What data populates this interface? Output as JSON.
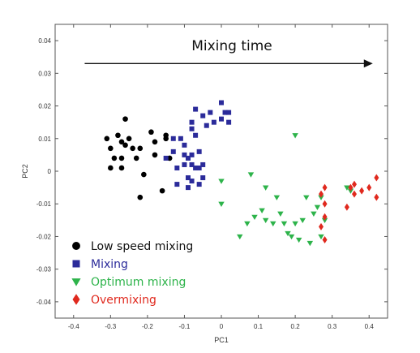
{
  "chart_data": {
    "type": "scatter",
    "xlabel": "PC1",
    "ylabel": "PC2",
    "xlim": [
      -0.45,
      0.45
    ],
    "ylim": [
      -0.045,
      0.045
    ],
    "x_ticks": [
      -0.4,
      -0.3,
      -0.2,
      -0.1,
      0,
      0.1,
      0.2,
      0.3,
      0.4
    ],
    "y_ticks": [
      -0.04,
      -0.03,
      -0.02,
      -0.01,
      0,
      0.01,
      0.02,
      0.03,
      0.04
    ],
    "grid": false,
    "legend_position": "bottom-left",
    "annotation": {
      "text": "Mixing time",
      "arrow_from": [
        -0.37,
        0.033
      ],
      "arrow_to": [
        0.41,
        0.033
      ]
    },
    "series": [
      {
        "name": "Low speed mixing",
        "marker": "circle",
        "color": "#000000",
        "points": [
          [
            -0.31,
            0.01
          ],
          [
            -0.3,
            0.007
          ],
          [
            -0.29,
            0.004
          ],
          [
            -0.3,
            0.001
          ],
          [
            -0.28,
            0.011
          ],
          [
            -0.27,
            0.009
          ],
          [
            -0.26,
            0.016
          ],
          [
            -0.26,
            0.008
          ],
          [
            -0.27,
            0.004
          ],
          [
            -0.27,
            0.001
          ],
          [
            -0.25,
            0.01
          ],
          [
            -0.24,
            0.007
          ],
          [
            -0.23,
            0.004
          ],
          [
            -0.22,
            0.007
          ],
          [
            -0.22,
            -0.008
          ],
          [
            -0.21,
            -0.001
          ],
          [
            -0.19,
            0.012
          ],
          [
            -0.18,
            0.009
          ],
          [
            -0.18,
            0.005
          ],
          [
            -0.15,
            0.011
          ],
          [
            -0.15,
            0.01
          ],
          [
            -0.14,
            0.004
          ],
          [
            -0.16,
            -0.006
          ]
        ]
      },
      {
        "name": "Mixing",
        "marker": "square",
        "color": "#2b2b9a",
        "points": [
          [
            -0.15,
            0.004
          ],
          [
            -0.13,
            0.01
          ],
          [
            -0.13,
            0.006
          ],
          [
            -0.12,
            0.001
          ],
          [
            -0.12,
            -0.004
          ],
          [
            -0.11,
            0.01
          ],
          [
            -0.1,
            0.008
          ],
          [
            -0.1,
            0.005
          ],
          [
            -0.1,
            0.002
          ],
          [
            -0.09,
            0.004
          ],
          [
            -0.09,
            -0.002
          ],
          [
            -0.09,
            -0.005
          ],
          [
            -0.08,
            0.005
          ],
          [
            -0.08,
            0.002
          ],
          [
            -0.08,
            -0.003
          ],
          [
            -0.07,
            0.001
          ],
          [
            -0.06,
            0.006
          ],
          [
            -0.06,
            0.001
          ],
          [
            -0.06,
            -0.004
          ],
          [
            -0.05,
            0.002
          ],
          [
            -0.05,
            -0.002
          ],
          [
            -0.08,
            0.015
          ],
          [
            -0.07,
            0.019
          ],
          [
            -0.05,
            0.017
          ],
          [
            -0.04,
            0.014
          ],
          [
            -0.03,
            0.018
          ],
          [
            -0.02,
            0.015
          ],
          [
            0.0,
            0.021
          ],
          [
            0.01,
            0.018
          ],
          [
            0.0,
            0.016
          ],
          [
            0.02,
            0.018
          ],
          [
            0.02,
            0.015
          ],
          [
            -0.07,
            0.011
          ],
          [
            -0.08,
            0.013
          ]
        ]
      },
      {
        "name": "Optimum mixing",
        "marker": "triangle-down",
        "color": "#2db34a",
        "points": [
          [
            0.0,
            -0.003
          ],
          [
            0.0,
            -0.01
          ],
          [
            0.05,
            -0.02
          ],
          [
            0.07,
            -0.016
          ],
          [
            0.08,
            -0.001
          ],
          [
            0.09,
            -0.014
          ],
          [
            0.11,
            -0.012
          ],
          [
            0.12,
            -0.005
          ],
          [
            0.12,
            -0.015
          ],
          [
            0.14,
            -0.016
          ],
          [
            0.15,
            -0.008
          ],
          [
            0.16,
            -0.013
          ],
          [
            0.17,
            -0.016
          ],
          [
            0.18,
            -0.019
          ],
          [
            0.19,
            -0.02
          ],
          [
            0.2,
            -0.016
          ],
          [
            0.21,
            -0.021
          ],
          [
            0.2,
            0.011
          ],
          [
            0.22,
            -0.015
          ],
          [
            0.23,
            -0.008
          ],
          [
            0.24,
            -0.022
          ],
          [
            0.25,
            -0.013
          ],
          [
            0.26,
            -0.011
          ],
          [
            0.27,
            -0.008
          ],
          [
            0.27,
            -0.02
          ],
          [
            0.28,
            -0.015
          ],
          [
            0.34,
            -0.005
          ],
          [
            0.35,
            -0.006
          ]
        ]
      },
      {
        "name": "Overmixing",
        "marker": "diamond",
        "color": "#e0291e",
        "points": [
          [
            0.27,
            -0.007
          ],
          [
            0.28,
            -0.005
          ],
          [
            0.28,
            -0.01
          ],
          [
            0.28,
            -0.014
          ],
          [
            0.27,
            -0.017
          ],
          [
            0.28,
            -0.021
          ],
          [
            0.34,
            -0.011
          ],
          [
            0.35,
            -0.005
          ],
          [
            0.36,
            -0.007
          ],
          [
            0.38,
            -0.006
          ],
          [
            0.4,
            -0.005
          ],
          [
            0.42,
            -0.002
          ],
          [
            0.42,
            -0.008
          ],
          [
            0.36,
            -0.004
          ]
        ]
      }
    ]
  }
}
